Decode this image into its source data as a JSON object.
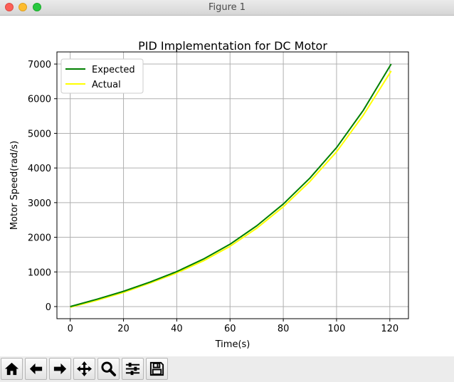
{
  "window": {
    "title": "Figure 1"
  },
  "toolbar": {
    "buttons": [
      "home-icon",
      "back-arrow-icon",
      "forward-arrow-icon",
      "pan-move-icon",
      "zoom-magnifier-icon",
      "configure-subplots-icon",
      "save-floppy-icon"
    ]
  },
  "chart_data": {
    "type": "line",
    "title": "PID Implementation for DC Motor",
    "xlabel": "Time(s)",
    "ylabel": "Motor Speed(rad/s)",
    "xlim": [
      -5,
      127
    ],
    "ylim": [
      -350,
      7350
    ],
    "xticks": [
      0,
      20,
      40,
      60,
      80,
      100,
      120
    ],
    "yticks": [
      0,
      1000,
      2000,
      3000,
      4000,
      5000,
      6000,
      7000
    ],
    "grid": true,
    "legend": "upper-left",
    "series": [
      {
        "name": "Expected",
        "color": "#008000",
        "x": [
          0,
          10,
          20,
          30,
          40,
          50,
          60,
          70,
          80,
          90,
          100,
          110,
          120.5
        ],
        "y": [
          0,
          210,
          440,
          710,
          1010,
          1370,
          1800,
          2330,
          2960,
          3710,
          4590,
          5660,
          7000
        ]
      },
      {
        "name": "Actual",
        "color": "#ffff00",
        "x": [
          0,
          10,
          20,
          30,
          40,
          50,
          60,
          70,
          80,
          90,
          100,
          110,
          120.5
        ],
        "y": [
          -20,
          180,
          410,
          680,
          970,
          1320,
          1740,
          2260,
          2880,
          3610,
          4470,
          5520,
          6800
        ]
      }
    ]
  }
}
